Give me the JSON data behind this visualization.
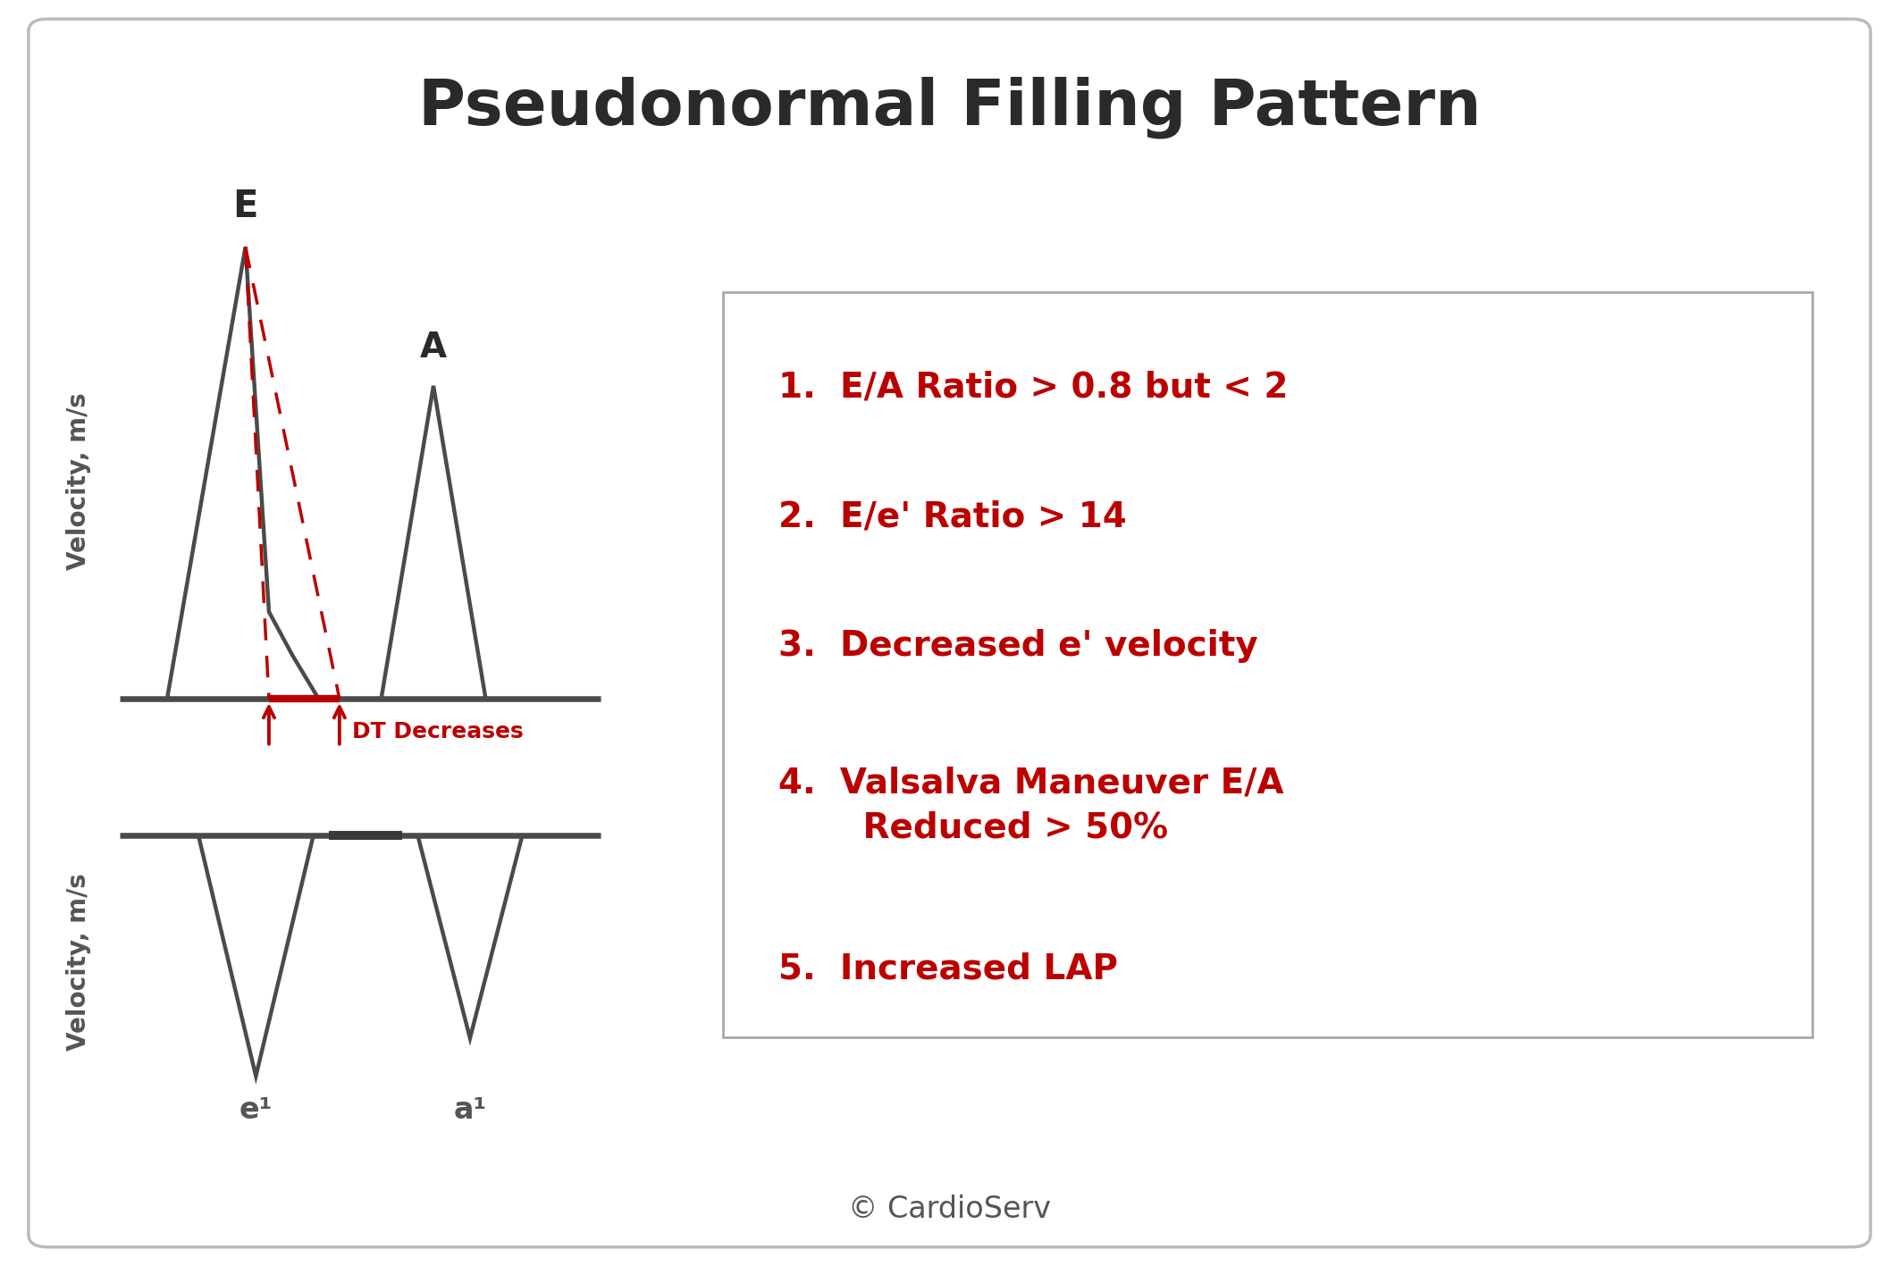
{
  "title": "Pseudonormal Filling Pattern",
  "title_fontsize": 52,
  "title_color": "#2a2a2a",
  "background_color": "#ffffff",
  "border_color": "#bbbbbb",
  "wave_color": "#4a4a4a",
  "red_color": "#bb0000",
  "text_color": "#555555",
  "label_items": [
    "1.  E/A Ratio > 0.8 but < 2",
    "2.  E/e' Ratio > 14",
    "3.  Decreased e' velocity",
    "4.  Valsalva Maneuver E/A\n       Reduced > 50%",
    "5.  Increased LAP"
  ],
  "copyright": "© CardioServ",
  "ylabel": "Velocity, m/s",
  "E_label": "E",
  "A_label": "A",
  "e_prime_label": "e¹",
  "a_prime_label": "a¹",
  "DT_label": "DT Decreases"
}
